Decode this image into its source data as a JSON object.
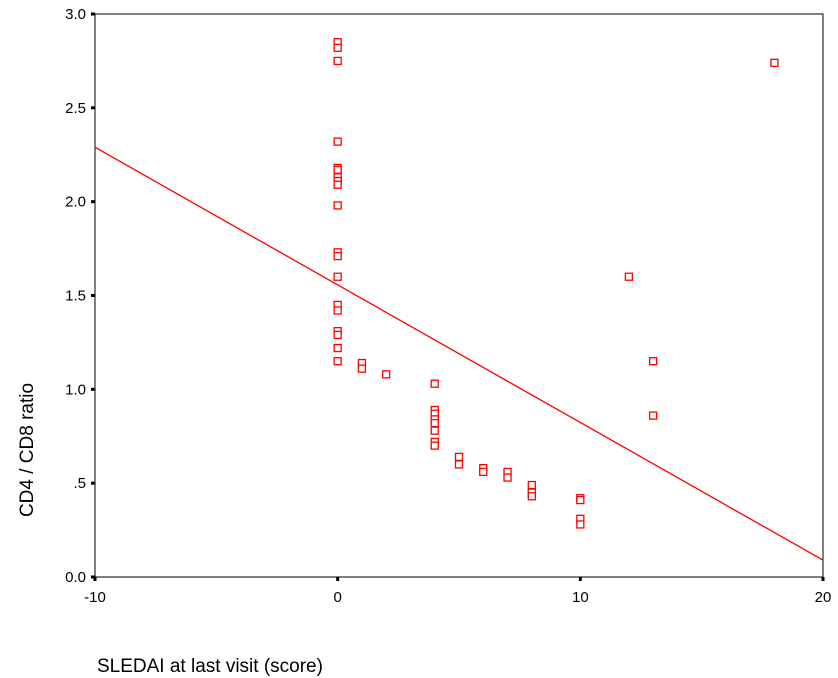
{
  "chart_data": {
    "type": "scatter",
    "title": "",
    "xlabel": "SLEDAI at last visit (score)",
    "ylabel": "CD4 / CD8 ratio",
    "xlim": [
      -10,
      20
    ],
    "ylim": [
      0.0,
      3.0
    ],
    "x_ticks": [
      -10,
      0,
      10,
      20
    ],
    "x_tick_labels": [
      "-10",
      "0",
      "10",
      "20"
    ],
    "y_ticks": [
      0.0,
      0.5,
      1.0,
      1.5,
      2.0,
      2.5,
      3.0
    ],
    "y_tick_labels": [
      "0.0",
      ".5",
      "1.0",
      "1.5",
      "2.0",
      "2.5",
      "3.0"
    ],
    "grid": false,
    "marker_color": "#ff0000",
    "line_color": "#ff0000",
    "points": [
      {
        "x": 0,
        "y": 2.85
      },
      {
        "x": 0,
        "y": 2.82
      },
      {
        "x": 0,
        "y": 2.75
      },
      {
        "x": 0,
        "y": 2.32
      },
      {
        "x": 0,
        "y": 2.18
      },
      {
        "x": 0,
        "y": 2.17
      },
      {
        "x": 0,
        "y": 2.13
      },
      {
        "x": 0,
        "y": 2.11
      },
      {
        "x": 0,
        "y": 2.09
      },
      {
        "x": 0,
        "y": 1.98
      },
      {
        "x": 0,
        "y": 1.73
      },
      {
        "x": 0,
        "y": 1.71
      },
      {
        "x": 0,
        "y": 1.6
      },
      {
        "x": 0,
        "y": 1.45
      },
      {
        "x": 0,
        "y": 1.42
      },
      {
        "x": 0,
        "y": 1.31
      },
      {
        "x": 0,
        "y": 1.29
      },
      {
        "x": 0,
        "y": 1.22
      },
      {
        "x": 0,
        "y": 1.15
      },
      {
        "x": 1,
        "y": 1.14
      },
      {
        "x": 1,
        "y": 1.11
      },
      {
        "x": 2,
        "y": 1.08
      },
      {
        "x": 4,
        "y": 1.03
      },
      {
        "x": 4,
        "y": 0.89
      },
      {
        "x": 4,
        "y": 0.87
      },
      {
        "x": 4,
        "y": 0.84
      },
      {
        "x": 4,
        "y": 0.82
      },
      {
        "x": 4,
        "y": 0.78
      },
      {
        "x": 4,
        "y": 0.72
      },
      {
        "x": 4,
        "y": 0.7
      },
      {
        "x": 5,
        "y": 0.64
      },
      {
        "x": 5,
        "y": 0.6
      },
      {
        "x": 6,
        "y": 0.58
      },
      {
        "x": 6,
        "y": 0.56
      },
      {
        "x": 7,
        "y": 0.56
      },
      {
        "x": 7,
        "y": 0.53
      },
      {
        "x": 8,
        "y": 0.49
      },
      {
        "x": 8,
        "y": 0.45
      },
      {
        "x": 8,
        "y": 0.43
      },
      {
        "x": 10,
        "y": 0.42
      },
      {
        "x": 10,
        "y": 0.41
      },
      {
        "x": 10,
        "y": 0.31
      },
      {
        "x": 10,
        "y": 0.28
      },
      {
        "x": 12,
        "y": 1.6
      },
      {
        "x": 13,
        "y": 1.15
      },
      {
        "x": 13,
        "y": 0.86
      },
      {
        "x": 18,
        "y": 2.74
      }
    ],
    "regression_line": {
      "x": [
        -10,
        20
      ],
      "y": [
        2.29,
        0.09
      ]
    }
  }
}
